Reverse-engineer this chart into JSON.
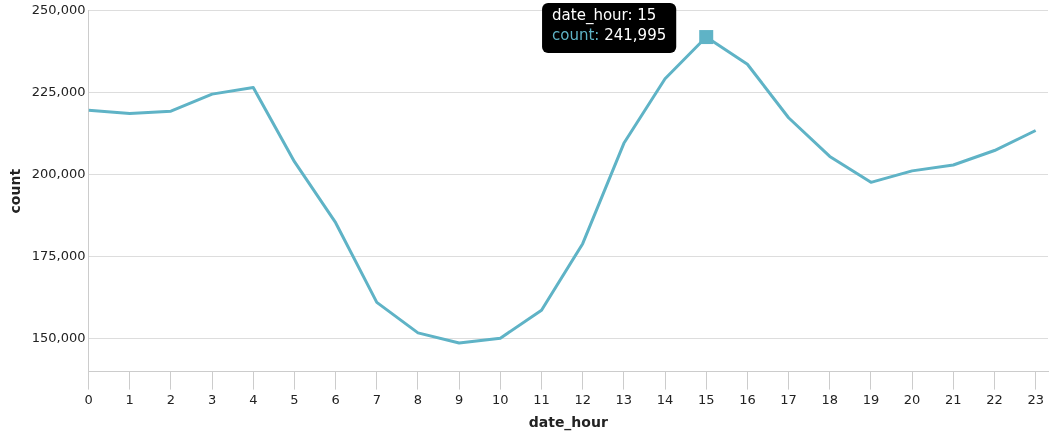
{
  "chart_data": {
    "type": "line",
    "xlabel": "date_hour",
    "ylabel": "count",
    "x": [
      0,
      1,
      2,
      3,
      4,
      5,
      6,
      7,
      8,
      9,
      10,
      11,
      12,
      13,
      14,
      15,
      16,
      17,
      18,
      19,
      20,
      21,
      22,
      23
    ],
    "series": [
      {
        "color": "#5fb3c6",
        "values": [
          219700,
          218700,
          219400,
          224600,
          226600,
          204000,
          185400,
          161100,
          151800,
          148700,
          150200,
          158700,
          179000,
          209600,
          229300,
          241995,
          233700,
          217400,
          205600,
          197700,
          201200,
          203000,
          207400,
          213500
        ]
      }
    ],
    "xlim": [
      0,
      23.3
    ],
    "xticks": [
      0,
      1,
      2,
      3,
      4,
      5,
      6,
      7,
      8,
      9,
      10,
      11,
      12,
      13,
      14,
      15,
      16,
      17,
      18,
      19,
      20,
      21,
      22,
      23
    ],
    "ylim": [
      140000,
      250000
    ],
    "yticks": [
      {
        "value": 150000,
        "label": "150,000"
      },
      {
        "value": 175000,
        "label": "175,000"
      },
      {
        "value": 200000,
        "label": "200,000"
      },
      {
        "value": 225000,
        "label": "225,000"
      },
      {
        "value": 250000,
        "label": "250,000"
      }
    ],
    "grid": "y",
    "legend": false,
    "marker": "none",
    "line_style": "solid",
    "annotations": [
      {
        "text": "date_hour: 15\ncount: 241,995",
        "x": 15,
        "y": 241995
      }
    ]
  }
}
